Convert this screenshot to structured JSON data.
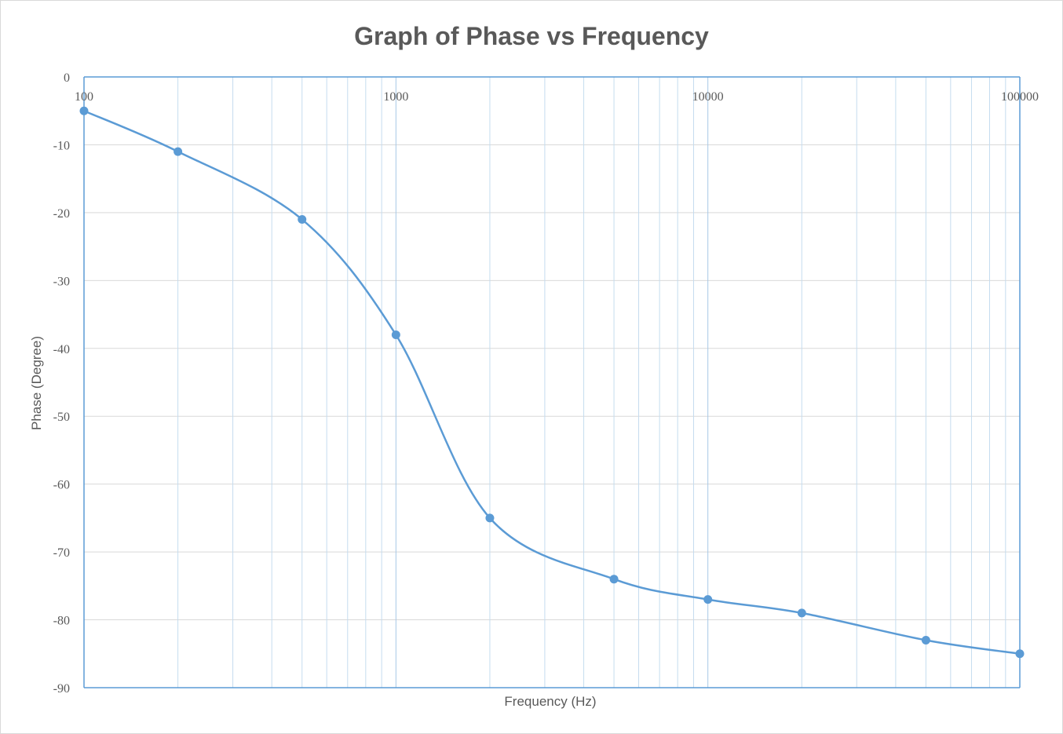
{
  "chart_data": {
    "type": "line",
    "title": "Graph of Phase vs Frequency",
    "xlabel": "Frequency (Hz)",
    "ylabel": "Phase (Degree)",
    "xscale": "log",
    "xlim": [
      100,
      100000
    ],
    "ylim": [
      -90,
      0
    ],
    "x_ticks": [
      "100",
      "1000",
      "10000",
      "100000"
    ],
    "y_ticks": [
      "0",
      "-10",
      "-20",
      "-30",
      "-40",
      "-50",
      "-60",
      "-70",
      "-80",
      "-90"
    ],
    "grid": true,
    "legend": "none",
    "color": "#5b9bd5",
    "series": [
      {
        "x": [
          100,
          200,
          500,
          1000,
          2000,
          5000,
          10000,
          20000,
          50000,
          100000
        ],
        "y": [
          -5,
          -11,
          -21,
          -38,
          -65,
          -74,
          -77,
          -79,
          -83,
          -85
        ]
      }
    ]
  }
}
